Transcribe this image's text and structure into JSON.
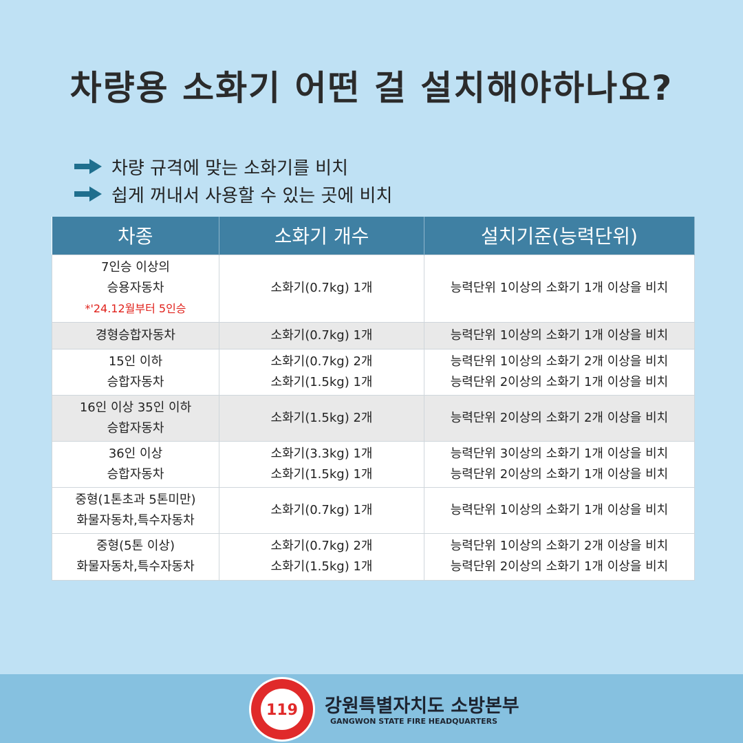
{
  "title": "차량용 소화기 어떤 걸 설치해야하나요?",
  "bullets": [
    "차량 규격에 맞는 소화기를 비치",
    "쉽게 꺼내서 사용할 수 있는 곳에 비치"
  ],
  "table": {
    "headers": [
      "차종",
      "소화기 개수",
      "설치기준(능력단위)"
    ],
    "rows": [
      {
        "type": [
          "7인승 이상의",
          "승용자동차"
        ],
        "note": "*'24.12월부터 5인승",
        "count": [
          "소화기(0.7kg) 1개"
        ],
        "standard": [
          "능력단위 1이상의 소화기 1개 이상을 비치"
        ]
      },
      {
        "type": [
          "경형승합자동차"
        ],
        "count": [
          "소화기(0.7kg) 1개"
        ],
        "standard": [
          "능력단위 1이상의 소화기 1개 이상을 비치"
        ]
      },
      {
        "type": [
          "15인 이하",
          "승합자동차"
        ],
        "count": [
          "소화기(0.7kg) 2개",
          "소화기(1.5kg) 1개"
        ],
        "standard": [
          "능력단위 1이상의 소화기 2개 이상을 비치",
          "능력단위 2이상의 소화기 1개 이상을 비치"
        ]
      },
      {
        "type": [
          "16인 이상 35인 이하",
          "승합자동차"
        ],
        "count": [
          "소화기(1.5kg) 2개"
        ],
        "standard": [
          "능력단위 2이상의 소화기 2개 이상을 비치"
        ]
      },
      {
        "type": [
          "36인 이상",
          "승합자동차"
        ],
        "count": [
          "소화기(3.3kg) 1개",
          "소화기(1.5kg) 1개"
        ],
        "standard": [
          "능력단위 3이상의 소화기 1개 이상을 비치",
          "능력단위 2이상의 소화기 1개 이상을 비치"
        ]
      },
      {
        "type": [
          "중형(1톤초과 5톤미만)",
          "화물자동차,특수자동차"
        ],
        "count": [
          "소화기(0.7kg) 1개"
        ],
        "standard": [
          "능력단위 1이상의 소화기 1개 이상을 비치"
        ]
      },
      {
        "type": [
          "중형(5톤 이상)",
          "화물자동차,특수자동차"
        ],
        "count": [
          "소화기(0.7kg) 2개",
          "소화기(1.5kg) 1개"
        ],
        "standard": [
          "능력단위 1이상의 소화기 2개 이상을 비치",
          "능력단위 2이상의 소화기 1개 이상을 비치"
        ]
      }
    ]
  },
  "footer": {
    "org_ko": "강원특별자치도 소방본부",
    "org_en": "GANGWON STATE FIRE HEADQUARTERS",
    "logo_text": [
      "Gangwon State",
      "119",
      "소방본부"
    ]
  },
  "colors": {
    "background": "#bfe1f4",
    "header": "#3f80a3",
    "note": "#e0201a",
    "footer": "#86c1e0"
  }
}
